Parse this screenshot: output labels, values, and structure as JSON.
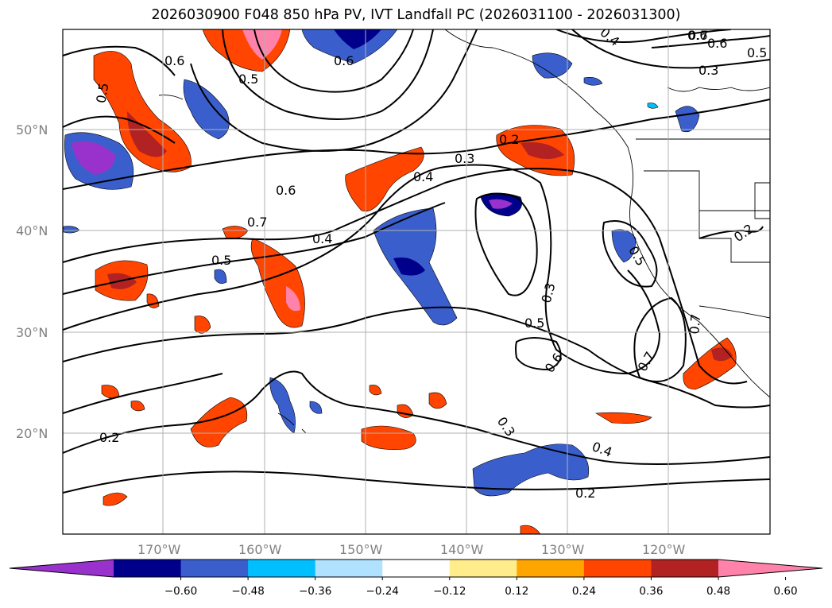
{
  "title": "2026030900 F048 850 hPa PV, IVT Landfall PC (2026031100 - 2026031300)",
  "lat_ticks": [
    "50°N",
    "40°N",
    "30°N",
    "20°N"
  ],
  "lon_ticks": [
    "170°W",
    "160°W",
    "150°W",
    "140°W",
    "130°W",
    "120°W"
  ],
  "contour_labels": [
    "0.6",
    "0.5",
    "0.6",
    "0.7",
    "0.5",
    "0.6",
    "0.5",
    "0.7",
    "0.5",
    "0.4",
    "0.3",
    "0.4",
    "0.2",
    "0.3",
    "0.5",
    "0.6",
    "0.7",
    "0.6",
    "0.2",
    "0.2",
    "0.3",
    "0.4",
    "0.2",
    "0.3",
    "0.5",
    "0.4",
    "0.6",
    "0.7"
  ],
  "colorbar": {
    "colors": [
      "#9932cc",
      "#00008b",
      "#3a5fcd",
      "#00bfff",
      "#b0e2ff",
      "#ffffff",
      "#ffec8b",
      "#ffa500",
      "#ff4500",
      "#b22222",
      "#ff82ab"
    ],
    "tick_labels": [
      "−0.60",
      "−0.48",
      "−0.36",
      "−0.24",
      "−0.12",
      "0.12",
      "0.24",
      "0.36",
      "0.48",
      "0.60"
    ]
  }
}
